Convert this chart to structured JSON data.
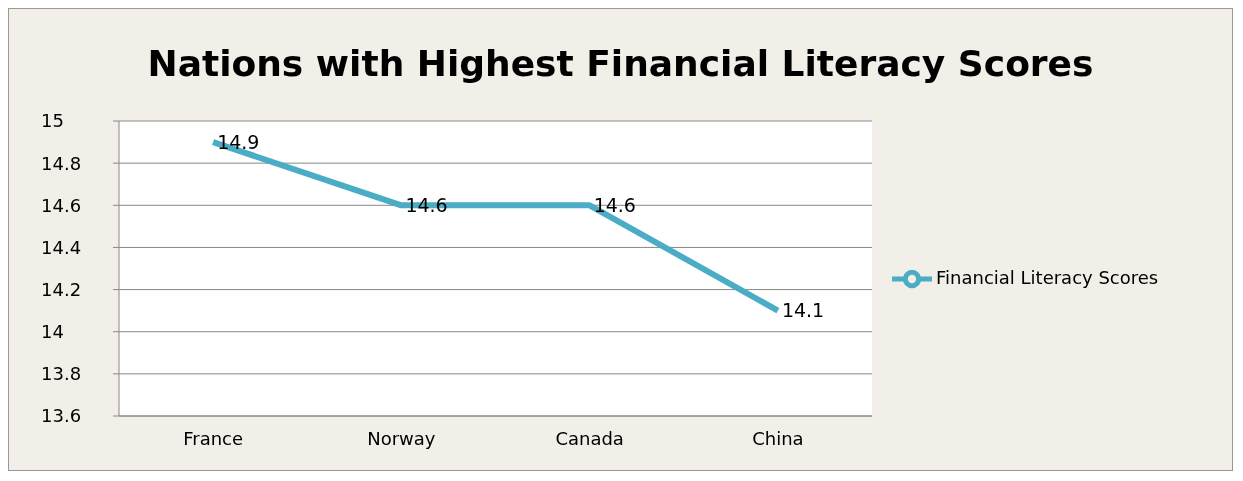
{
  "chart_data": {
    "type": "line",
    "title": "Nations with Highest Financial Literacy Scores",
    "categories": [
      "France",
      "Norway",
      "Canada",
      "China"
    ],
    "series": [
      {
        "name": "Financial Literacy Scores",
        "color": "#4bacc6",
        "values": [
          14.9,
          14.6,
          14.6,
          14.1
        ]
      }
    ],
    "ylim": [
      13.6,
      15
    ],
    "yticks": [
      13.6,
      13.8,
      14,
      14.2,
      14.4,
      14.6,
      14.8,
      15
    ],
    "grid": "y",
    "legend": "right",
    "data_labels": true,
    "marker": "none",
    "line_style": "solid"
  }
}
